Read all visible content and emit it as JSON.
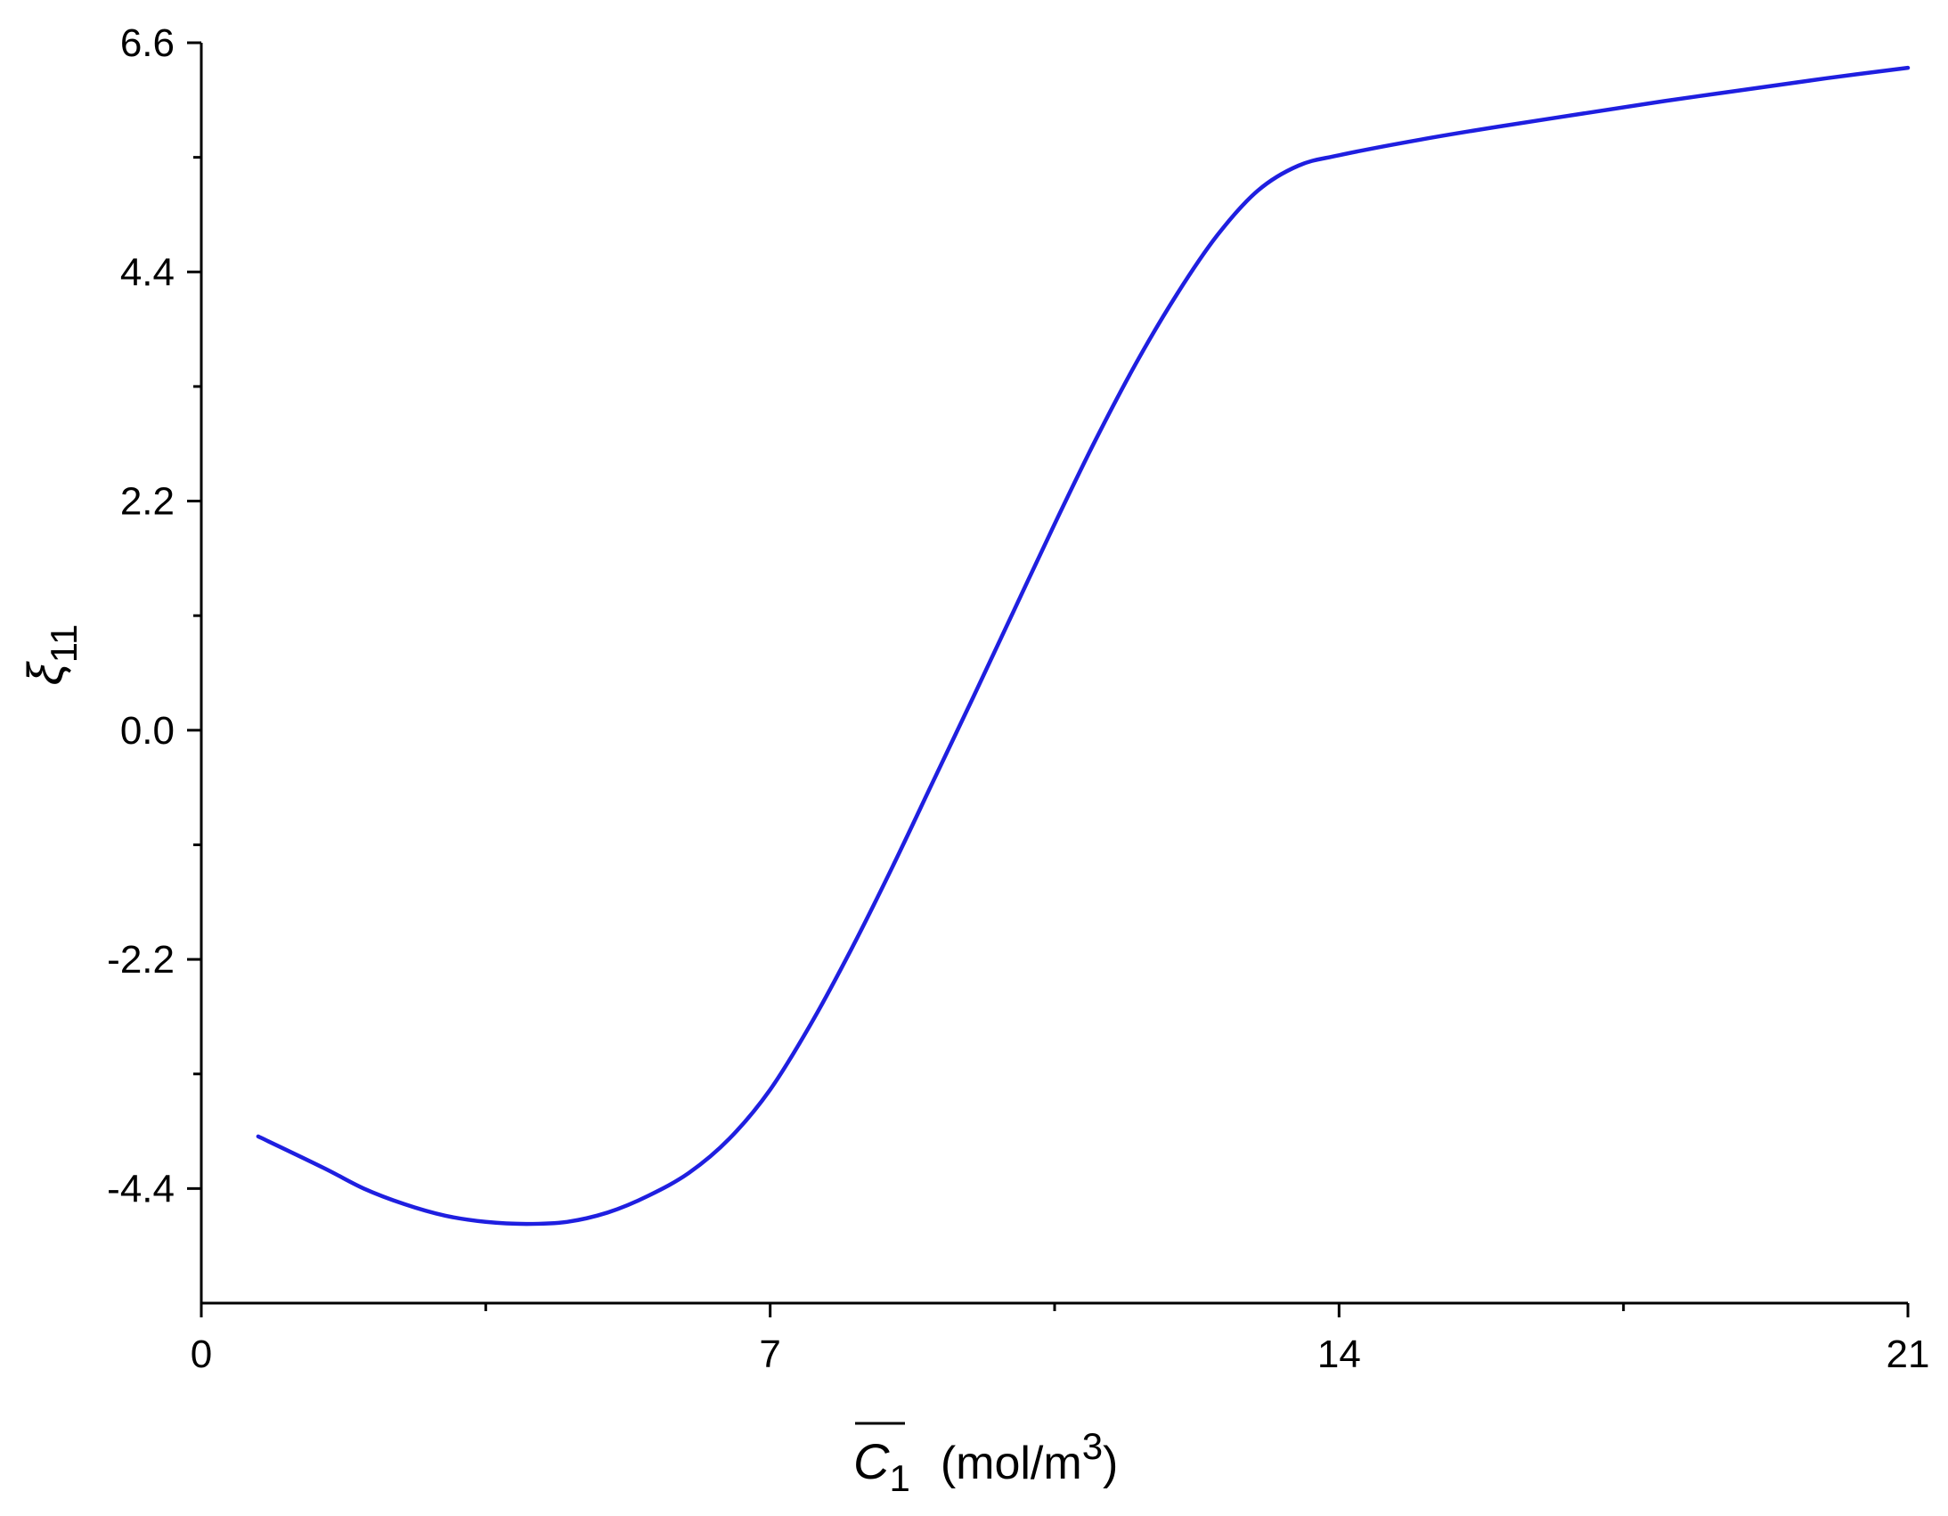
{
  "chart_data": {
    "type": "line",
    "x_axis": {
      "label_symbol": "C",
      "label_subscript": "1",
      "label_units_prefix": "(mol/m",
      "label_units_power": "3",
      "label_units_suffix": ")",
      "range": [
        0,
        21
      ],
      "major_ticks": [
        0,
        7,
        14,
        21
      ],
      "tick_labels": [
        "0",
        "7",
        "14",
        "21"
      ],
      "minor_ticks": [
        3.5,
        10.5,
        17.5
      ]
    },
    "y_axis": {
      "label_symbol": "ξ",
      "label_subscript": "11",
      "range": [
        -5.5,
        6.6
      ],
      "major_ticks": [
        -4.4,
        -2.2,
        0.0,
        2.2,
        4.4,
        6.6
      ],
      "tick_labels": [
        "-4.4",
        "-2.2",
        "0.0",
        "2.2",
        "4.4",
        "6.6"
      ],
      "minor_ticks": [
        -3.3,
        -1.1,
        1.1,
        3.3,
        5.5
      ]
    },
    "grid": false,
    "series": [
      {
        "color": "#1f1fe0",
        "x": [
          0.7,
          1.5,
          2.0,
          2.5,
          3.0,
          3.5,
          4.0,
          4.5,
          5.0,
          5.5,
          6.0,
          6.5,
          7.0,
          7.5,
          8.0,
          8.5,
          9.0,
          9.5,
          10.0,
          10.5,
          11.0,
          11.5,
          12.0,
          12.5,
          13.0,
          13.5,
          14.0,
          15.0,
          16.0,
          17.0,
          18.0,
          19.0,
          20.0,
          21.0
        ],
        "y": [
          -3.9,
          -4.2,
          -4.4,
          -4.55,
          -4.66,
          -4.72,
          -4.74,
          -4.72,
          -4.63,
          -4.47,
          -4.25,
          -3.92,
          -3.45,
          -2.82,
          -2.1,
          -1.32,
          -0.5,
          0.32,
          1.15,
          1.98,
          2.78,
          3.52,
          4.18,
          4.75,
          5.18,
          5.42,
          5.52,
          5.67,
          5.8,
          5.92,
          6.04,
          6.15,
          6.26,
          6.36
        ]
      }
    ]
  }
}
